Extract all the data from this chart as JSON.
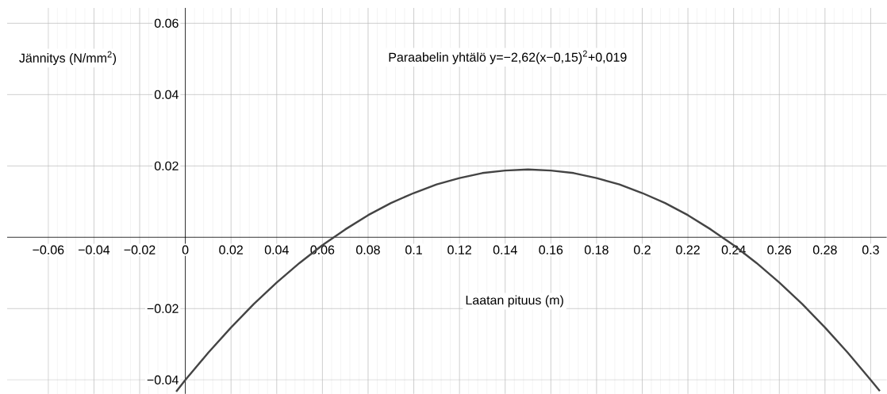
{
  "chart_data": {
    "type": "line",
    "xlabel": "Laatan pituus (m)",
    "ylabel": "Jännitys (N/mm$^{2}$)",
    "annotations": [
      "Paraabelin yhtälö y=−2,62(x−0,15)$^{2}$+0,019"
    ],
    "x": [
      -0.004,
      0,
      0.01,
      0.02,
      0.03,
      0.04,
      0.05,
      0.06,
      0.07,
      0.08,
      0.09,
      0.1,
      0.11,
      0.12,
      0.13,
      0.14,
      0.15,
      0.16,
      0.17,
      0.18,
      0.19,
      0.2,
      0.21,
      0.22,
      0.23,
      0.24,
      0.25,
      0.26,
      0.27,
      0.28,
      0.29,
      0.3,
      0.304
    ],
    "values": [
      -0.0433,
      -0.04,
      -0.0324,
      -0.0253,
      -0.0187,
      -0.0127,
      -0.0072,
      -0.0022,
      0.0022,
      0.0062,
      0.0096,
      0.0124,
      0.0148,
      0.0166,
      0.018,
      0.0187,
      0.019,
      0.0187,
      0.018,
      0.0166,
      0.0148,
      0.0124,
      0.0096,
      0.0062,
      0.0022,
      -0.0022,
      -0.0072,
      -0.0127,
      -0.0187,
      -0.0253,
      -0.0324,
      -0.04,
      -0.0431
    ],
    "color": "#444444",
    "xlim": [
      -0.078,
      0.307
    ],
    "ylim": [
      -0.0439,
      0.0643
    ],
    "xticks": [
      {
        "value": -0.06,
        "label": "−0.06"
      },
      {
        "value": -0.04,
        "label": "−0.04"
      },
      {
        "value": -0.02,
        "label": "−0.02"
      },
      0,
      0.02,
      0.04,
      0.06,
      0.08,
      0.1,
      0.12,
      0.14,
      0.16,
      0.18,
      0.2,
      0.22,
      0.24,
      0.26,
      0.28,
      0.3
    ],
    "yticks": [
      {
        "value": -0.04,
        "label": "−0.04"
      },
      {
        "value": -0.02,
        "label": "−0.02"
      },
      0.02,
      0.04,
      0.06
    ],
    "grid": true,
    "marker": "none",
    "line_style": "solid"
  }
}
